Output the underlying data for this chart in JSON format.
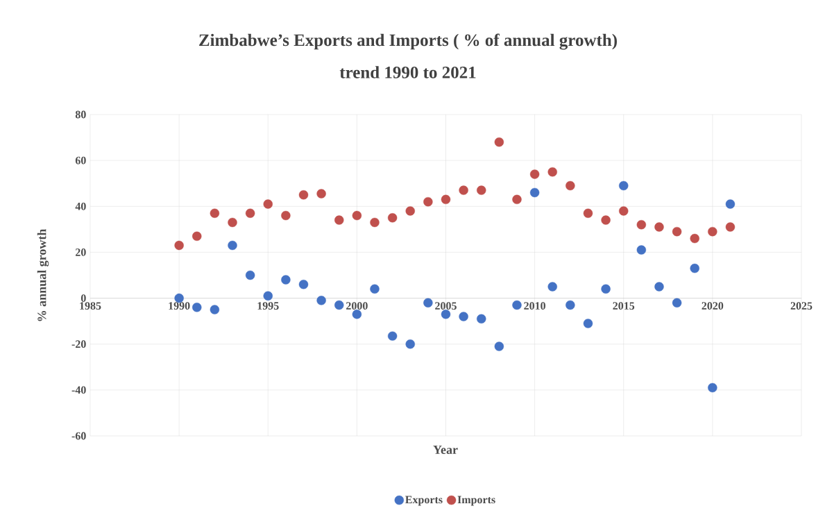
{
  "chart_data": {
    "type": "scatter",
    "title": "Zimbabwe’s Exports and Imports ( % of annual growth)",
    "subtitle": "trend 1990 to 2021",
    "xlabel": "Year",
    "ylabel": "% annual growth",
    "x": [
      1990,
      1991,
      1992,
      1993,
      1994,
      1995,
      1996,
      1997,
      1998,
      1999,
      2000,
      2001,
      2002,
      2003,
      2004,
      2005,
      2006,
      2007,
      2008,
      2009,
      2010,
      2011,
      2012,
      2013,
      2014,
      2015,
      2016,
      2017,
      2018,
      2019,
      2020,
      2021
    ],
    "series": [
      {
        "name": "Exports",
        "color": "#4472c4",
        "values": [
          0,
          -4,
          -5,
          23,
          10,
          1,
          8,
          6,
          -1,
          -3,
          -7,
          4,
          -16.5,
          -20,
          -2,
          -7,
          -8,
          -9,
          -21,
          -3,
          46,
          5,
          -3,
          -11,
          4,
          49,
          21,
          5,
          -2,
          13,
          -39,
          41
        ]
      },
      {
        "name": "Imports",
        "color": "#c0504d",
        "values": [
          23,
          27,
          37,
          33,
          37,
          41,
          36,
          45,
          45.5,
          34,
          36,
          33,
          35,
          38,
          42,
          43,
          47,
          47,
          68,
          43,
          54,
          55,
          49,
          37,
          34,
          38,
          32,
          31,
          29,
          26,
          29,
          31
        ]
      }
    ],
    "xlim": [
      1985,
      2025
    ],
    "xticks": [
      1985,
      1990,
      1995,
      2000,
      2005,
      2010,
      2015,
      2020,
      2025
    ],
    "ylim": [
      -60,
      80
    ],
    "yticks": [
      -60,
      -40,
      -20,
      0,
      20,
      40,
      60,
      80
    ],
    "grid": true,
    "legend": "bottom",
    "marker": "circle"
  }
}
